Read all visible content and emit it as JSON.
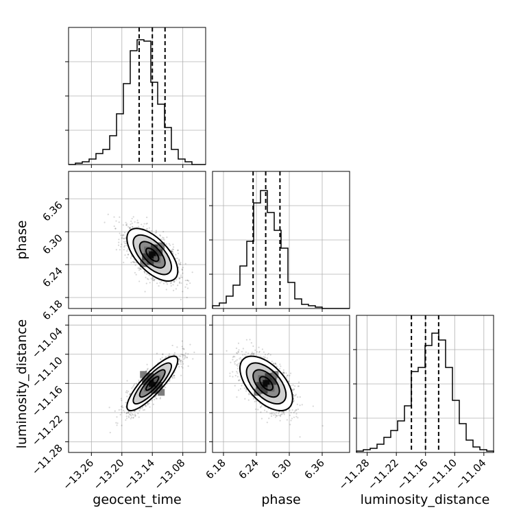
{
  "chart_data": {
    "type": "corner",
    "parameters": [
      "geocent_time",
      "phase",
      "luminosity_distance"
    ],
    "axis_labels": {
      "x": [
        "geocent_time",
        "phase",
        "luminosity_distance"
      ],
      "y": [
        "phase",
        "luminosity_distance"
      ]
    },
    "ticks": {
      "geocent_time": [
        "−13.26",
        "−13.20",
        "−13.14",
        "−13.08"
      ],
      "phase": [
        "6.18",
        "6.24",
        "6.30",
        "6.36"
      ],
      "luminosity_distance": [
        "−11.28",
        "−11.22",
        "−11.16",
        "−11.10",
        "−11.04"
      ]
    },
    "ranges": {
      "geocent_time": [
        -13.305,
        -13.035
      ],
      "phase": [
        6.16,
        6.41
      ],
      "luminosity_distance": [
        -11.302,
        -11.02
      ]
    },
    "quantiles": {
      "geocent_time": [
        -13.166,
        -13.14,
        -13.115
      ],
      "phase": [
        6.234,
        6.257,
        6.283
      ],
      "luminosity_distance": [
        -11.189,
        -11.16,
        -11.133
      ]
    },
    "histograms": {
      "geocent_time": {
        "edges": [
          -13.305,
          -13.035
        ],
        "counts": [
          0.0,
          0.01,
          0.02,
          0.04,
          0.08,
          0.11,
          0.21,
          0.37,
          0.59,
          0.83,
          0.91,
          0.9,
          0.6,
          0.44,
          0.27,
          0.11,
          0.04,
          0.02,
          0.0,
          0.0
        ]
      },
      "phase": {
        "edges": [
          6.16,
          6.41
        ],
        "counts": [
          0.02,
          0.04,
          0.09,
          0.17,
          0.31,
          0.49,
          0.77,
          0.86,
          0.7,
          0.57,
          0.44,
          0.19,
          0.07,
          0.03,
          0.02,
          0.01,
          0.0,
          0.0,
          0.0,
          0.0
        ]
      },
      "luminosity_distance": {
        "edges": [
          -11.302,
          -11.02
        ],
        "counts": [
          0.01,
          0.02,
          0.03,
          0.06,
          0.11,
          0.16,
          0.23,
          0.34,
          0.59,
          0.62,
          0.78,
          0.87,
          0.82,
          0.62,
          0.38,
          0.21,
          0.09,
          0.04,
          0.02,
          0.01
        ]
      }
    },
    "samples_2d": [
      {
        "x": "geocent_time",
        "y": "phase",
        "mean": [
          -13.14,
          6.258
        ],
        "sd": [
          0.025,
          0.024
        ],
        "corr": -0.62
      },
      {
        "x": "geocent_time",
        "y": "luminosity_distance",
        "mean": [
          -13.14,
          -11.16
        ],
        "sd": [
          0.025,
          0.028
        ],
        "corr": 0.85
      },
      {
        "x": "phase",
        "y": "luminosity_distance",
        "mean": [
          6.258,
          -11.16
        ],
        "sd": [
          0.024,
          0.028
        ],
        "corr": -0.55
      }
    ],
    "contour_levels": [
      "0.5",
      "1.0",
      "1.5",
      "2.0"
    ],
    "grid": true,
    "color": "#000000"
  }
}
